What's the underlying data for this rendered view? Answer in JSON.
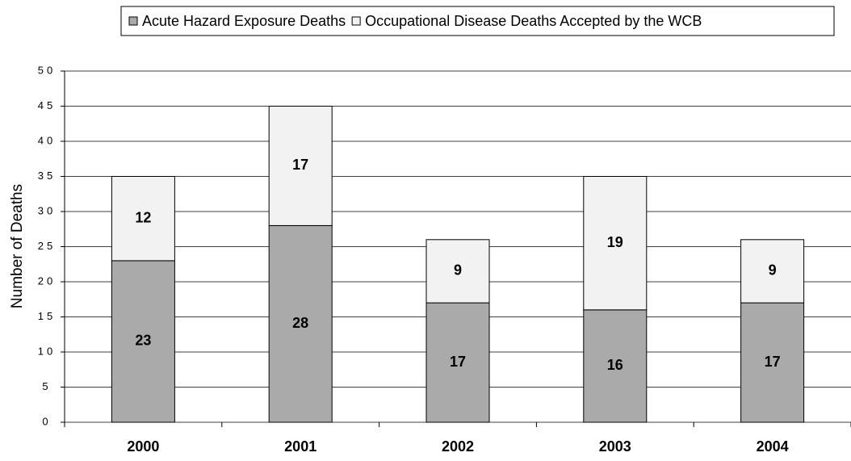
{
  "chart_data": {
    "type": "stacked_bar",
    "y_label": "Number of Deaths",
    "categories": [
      "2000",
      "2001",
      "2002",
      "2003",
      "2004"
    ],
    "series": [
      {
        "name": "Acute Hazard Exposure Deaths",
        "color": "#aaaaaa",
        "values": [
          23,
          28,
          17,
          16,
          17
        ]
      },
      {
        "name": "Occupational Disease Deaths Accepted by the WCB",
        "color": "#f2f2f2",
        "values": [
          12,
          17,
          9,
          19,
          9
        ]
      }
    ],
    "ylim": [
      0,
      50
    ],
    "yticks": [
      0,
      5,
      10,
      15,
      20,
      25,
      30,
      35,
      40,
      45,
      50
    ],
    "grid": true,
    "legend": "top"
  }
}
